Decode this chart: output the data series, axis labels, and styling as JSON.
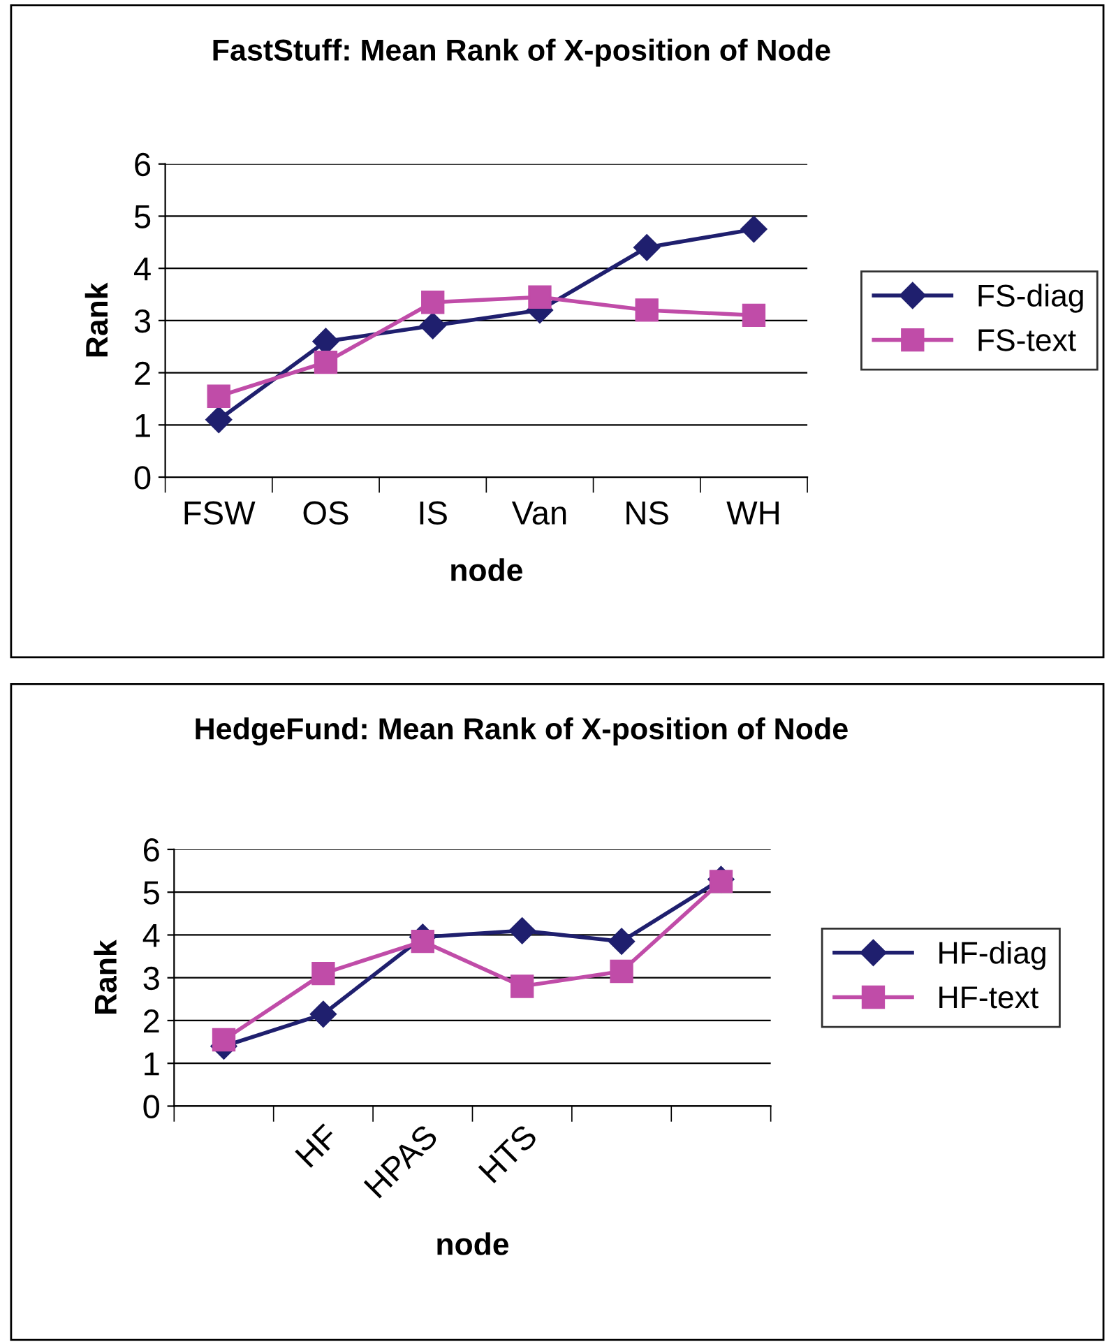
{
  "chart_data": [
    {
      "type": "line",
      "title": "FastStuff: Mean Rank of X-position of Node",
      "xlabel": "node",
      "ylabel": "Rank",
      "categories": [
        "FSW",
        "OS",
        "IS",
        "Van",
        "NS",
        "WH"
      ],
      "series": [
        {
          "name": "FS-diag",
          "color": "#1f1f6e",
          "marker": "diamond",
          "values": [
            1.1,
            2.6,
            2.9,
            3.2,
            4.4,
            4.75
          ]
        },
        {
          "name": "FS-text",
          "color": "#c04ca8",
          "marker": "square",
          "values": [
            1.55,
            2.2,
            3.35,
            3.45,
            3.2,
            3.1
          ]
        }
      ],
      "ylim": [
        0,
        6
      ],
      "yticks": [
        0,
        1,
        2,
        3,
        4,
        5,
        6
      ],
      "grid": "y",
      "legend": "right"
    },
    {
      "type": "line",
      "title": "HedgeFund: Mean Rank of X-position of Node",
      "xlabel": "node",
      "ylabel": "Rank",
      "categories": [
        null,
        "HF",
        "HPAS",
        "HTS",
        null,
        null
      ],
      "series": [
        {
          "name": "HF-diag",
          "color": "#1f1f6e",
          "marker": "diamond",
          "values": [
            1.4,
            2.15,
            3.95,
            4.1,
            3.85,
            5.3
          ]
        },
        {
          "name": "HF-text",
          "color": "#c04ca8",
          "marker": "square",
          "values": [
            1.55,
            3.1,
            3.85,
            2.8,
            3.15,
            5.25
          ]
        }
      ],
      "ylim": [
        0,
        6
      ],
      "yticks": [
        0,
        1,
        2,
        3,
        4,
        5,
        6
      ],
      "grid": "y",
      "legend": "right"
    }
  ]
}
